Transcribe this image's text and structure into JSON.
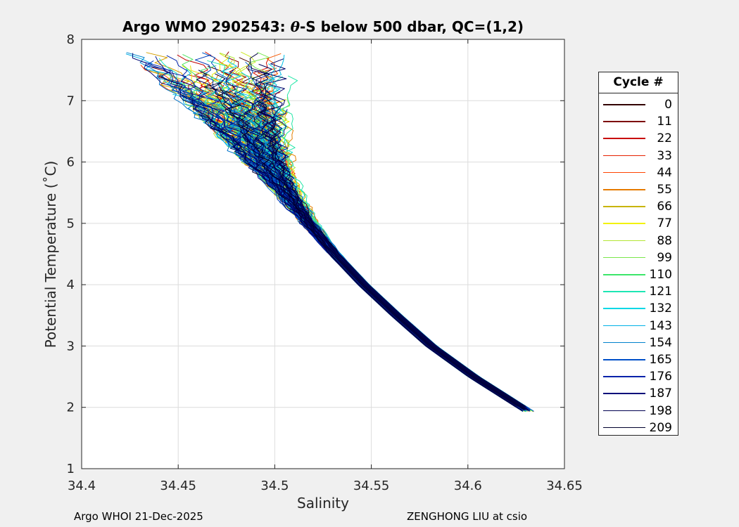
{
  "chart_data": {
    "type": "line",
    "title_prefix": "Argo WMO 2902543: ",
    "title_theta": "θ",
    "title_suffix": "-S below 500 dbar,  QC=(1,2)",
    "xlabel": "Salinity",
    "ylabel": "Potential Temperature (˚C)",
    "xlim": [
      34.4,
      34.65
    ],
    "ylim": [
      1,
      8
    ],
    "xticks": [
      "34.4",
      "34.45",
      "34.5",
      "34.55",
      "34.6",
      "34.65"
    ],
    "yticks": [
      "1",
      "2",
      "3",
      "4",
      "5",
      "6",
      "7",
      "8"
    ],
    "grid": true,
    "legend_title": "Cycle #",
    "legend_position": "right-outside",
    "legend": [
      {
        "label": "0",
        "color": "#320000"
      },
      {
        "label": "11",
        "color": "#7d0000"
      },
      {
        "label": "22",
        "color": "#c80000"
      },
      {
        "label": "33",
        "color": "#e62000"
      },
      {
        "label": "44",
        "color": "#ff4400"
      },
      {
        "label": "55",
        "color": "#e67a00"
      },
      {
        "label": "66",
        "color": "#c8b400"
      },
      {
        "label": "77",
        "color": "#f2f200"
      },
      {
        "label": "88",
        "color": "#b4e632"
      },
      {
        "label": "99",
        "color": "#7ae64a"
      },
      {
        "label": "110",
        "color": "#3ce66a"
      },
      {
        "label": "121",
        "color": "#1ee6b4"
      },
      {
        "label": "132",
        "color": "#00d8e6"
      },
      {
        "label": "143",
        "color": "#00b0e6"
      },
      {
        "label": "154",
        "color": "#0082cc"
      },
      {
        "label": "165",
        "color": "#0050c8"
      },
      {
        "label": "176",
        "color": "#0022aa"
      },
      {
        "label": "187",
        "color": "#000a7a"
      },
      {
        "label": "198",
        "color": "#000050"
      },
      {
        "label": "209",
        "color": "#00002e"
      }
    ],
    "mean_profile": {
      "t": [
        2.0,
        2.5,
        3.0,
        3.5,
        4.0,
        4.5,
        5.0,
        5.5,
        6.0,
        6.5,
        7.0
      ],
      "s": [
        34.628,
        34.603,
        34.581,
        34.563,
        34.546,
        34.531,
        34.518,
        34.507,
        34.497,
        34.489,
        34.482
      ]
    }
  },
  "footer": {
    "left": "Argo WHOI 21-Dec-2025",
    "right": "ZENGHONG LIU at csio"
  }
}
